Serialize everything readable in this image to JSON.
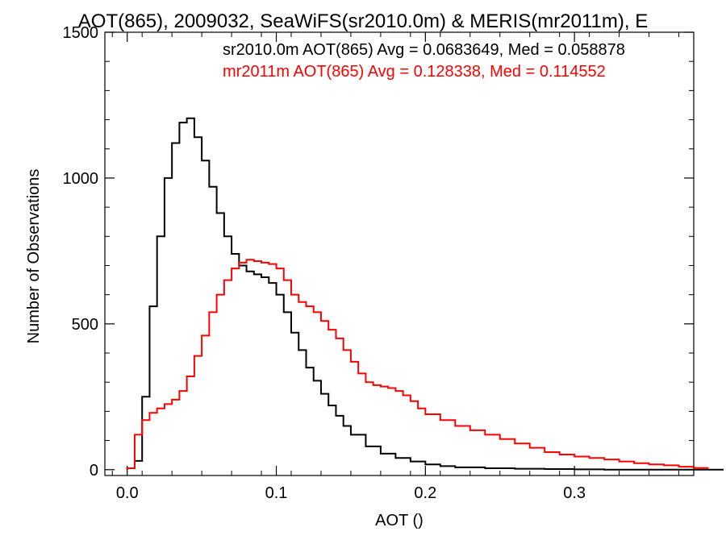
{
  "chart_data": {
    "type": "line",
    "style": "step-histogram",
    "title": "AOT(865), 2009032, SeaWiFS(sr2010.0m) & MERIS(mr2011m), E",
    "xlabel": "AOT ()",
    "ylabel": "Number of Observations",
    "xlim": [
      -0.015,
      0.38
    ],
    "ylim": [
      -20,
      1500
    ],
    "x_ticks": [
      {
        "value": 0.0,
        "label": "0.0"
      },
      {
        "value": 0.1,
        "label": "0.1"
      },
      {
        "value": 0.2,
        "label": "0.2"
      },
      {
        "value": 0.3,
        "label": "0.3"
      }
    ],
    "y_ticks": [
      {
        "value": 0,
        "label": "0"
      },
      {
        "value": 500,
        "label": "500"
      },
      {
        "value": 1000,
        "label": "1000"
      },
      {
        "value": 1500,
        "label": "1500"
      }
    ],
    "legend_position": "top-right",
    "legend": [
      {
        "text": "sr2010.0m AOT(865) Avg = 0.0683649, Med = 0.058878",
        "color": "#000000"
      },
      {
        "text": "mr2011m AOT(865) Avg = 0.128338, Med = 0.114552",
        "color": "#ff0000"
      }
    ],
    "series": [
      {
        "color": "#000000",
        "x": [
          0.0,
          0.005,
          0.01,
          0.015,
          0.02,
          0.025,
          0.03,
          0.035,
          0.04,
          0.045,
          0.05,
          0.055,
          0.06,
          0.065,
          0.07,
          0.075,
          0.08,
          0.085,
          0.09,
          0.095,
          0.1,
          0.105,
          0.11,
          0.115,
          0.12,
          0.125,
          0.13,
          0.135,
          0.14,
          0.145,
          0.15,
          0.16,
          0.17,
          0.18,
          0.19,
          0.2,
          0.21,
          0.22,
          0.24,
          0.26,
          0.28,
          0.3,
          0.32,
          0.34,
          0.36,
          0.38
        ],
        "y": [
          5,
          30,
          250,
          560,
          800,
          1000,
          1120,
          1190,
          1205,
          1140,
          1060,
          970,
          880,
          800,
          740,
          700,
          680,
          670,
          660,
          640,
          600,
          540,
          470,
          410,
          350,
          305,
          260,
          220,
          185,
          150,
          120,
          80,
          55,
          40,
          28,
          18,
          12,
          8,
          5,
          3,
          2,
          1,
          0,
          0,
          0,
          0
        ]
      },
      {
        "color": "#ff0000",
        "x": [
          0.0,
          0.005,
          0.01,
          0.015,
          0.02,
          0.025,
          0.03,
          0.035,
          0.04,
          0.045,
          0.05,
          0.055,
          0.06,
          0.065,
          0.07,
          0.075,
          0.08,
          0.085,
          0.09,
          0.095,
          0.1,
          0.105,
          0.11,
          0.115,
          0.12,
          0.125,
          0.13,
          0.135,
          0.14,
          0.145,
          0.15,
          0.155,
          0.16,
          0.165,
          0.17,
          0.175,
          0.18,
          0.185,
          0.19,
          0.195,
          0.2,
          0.21,
          0.22,
          0.23,
          0.24,
          0.25,
          0.26,
          0.27,
          0.28,
          0.29,
          0.3,
          0.31,
          0.32,
          0.33,
          0.34,
          0.35,
          0.36,
          0.37,
          0.38
        ],
        "y": [
          5,
          120,
          170,
          195,
          210,
          225,
          240,
          270,
          320,
          390,
          460,
          540,
          600,
          650,
          690,
          710,
          720,
          715,
          710,
          705,
          690,
          650,
          600,
          575,
          560,
          540,
          510,
          480,
          450,
          410,
          370,
          330,
          300,
          290,
          285,
          280,
          270,
          255,
          235,
          210,
          190,
          170,
          150,
          135,
          120,
          105,
          90,
          75,
          60,
          52,
          45,
          40,
          35,
          28,
          22,
          18,
          15,
          10,
          6
        ]
      }
    ]
  }
}
